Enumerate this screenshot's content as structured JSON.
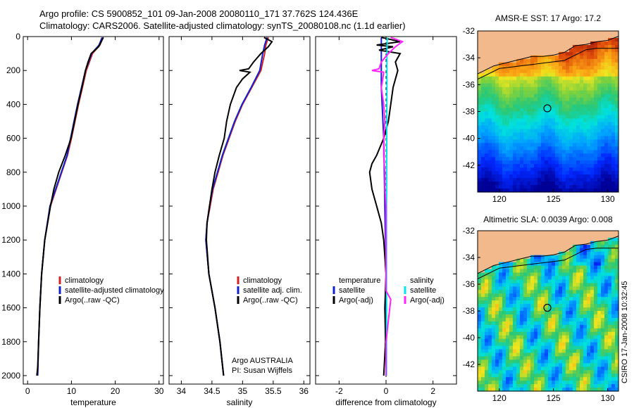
{
  "header": {
    "title_line1": "Argo profile: CS 5900852_101 09-Jan-2008 20080110_171 37.762S 124.436E",
    "title_line2": "Climatology: CARS2006. Satellite-adjusted climatology: synTS_20080108.nc (1.1d earlier)"
  },
  "side_stamp": "CSIRO 17-Jan-2008 10:32:45",
  "colors": {
    "climatology": "#d42020",
    "satellite": "#1020d0",
    "argo": "#000000",
    "salinity_sat": "#00e5ee",
    "salinity_argo": "#ff20ff",
    "land": "#f2b98c",
    "circle": "#000000"
  },
  "chart_data": [
    {
      "type": "line",
      "name": "temperature-panel",
      "xlabel": "temperature",
      "ylabel": "",
      "xlim": [
        -1,
        31
      ],
      "ylim": [
        2050,
        0
      ],
      "xticks": [
        0,
        10,
        20,
        30
      ],
      "yticks": [
        0,
        200,
        400,
        600,
        800,
        1000,
        1200,
        1400,
        1600,
        1800,
        2000
      ],
      "legend": {
        "position": "lower-right",
        "entries": [
          "climatology",
          "satellite-adjusted climatology",
          "Argo(..raw -QC)"
        ]
      },
      "series": [
        {
          "name": "climatology",
          "color": "#d42020",
          "depth": [
            5,
            50,
            100,
            200,
            300,
            400,
            500,
            600,
            700,
            800,
            1000,
            1200,
            1400,
            1600,
            1800,
            2000
          ],
          "values": [
            17.2,
            16.5,
            14.8,
            13.4,
            12.5,
            11.6,
            10.8,
            10.0,
            9.1,
            7.8,
            5.2,
            3.9,
            3.2,
            2.8,
            2.5,
            2.3
          ]
        },
        {
          "name": "satellite-adjusted climatology",
          "color": "#1020d0",
          "depth": [
            5,
            50,
            100,
            200,
            300,
            400,
            500,
            600,
            700,
            800,
            1000,
            1200,
            1400,
            1600,
            1800,
            2000
          ],
          "values": [
            17.0,
            16.3,
            14.6,
            13.2,
            12.3,
            11.4,
            10.6,
            9.8,
            9.0,
            7.7,
            5.1,
            3.9,
            3.2,
            2.8,
            2.5,
            2.3
          ]
        },
        {
          "name": "Argo(..raw -QC)",
          "color": "#000000",
          "depth": [
            5,
            30,
            60,
            100,
            150,
            200,
            300,
            400,
            500,
            600,
            700,
            800,
            900,
            1000,
            1200,
            1400,
            1600,
            1800,
            1950,
            2000
          ],
          "values": [
            17.3,
            16.8,
            16.2,
            14.5,
            13.8,
            13.2,
            12.4,
            11.5,
            10.7,
            9.9,
            8.6,
            7.1,
            6.0,
            5.2,
            3.9,
            3.2,
            2.8,
            2.5,
            2.3,
            2.1
          ]
        }
      ]
    },
    {
      "type": "line",
      "name": "salinity-panel",
      "xlabel": "salinity",
      "ylabel": "",
      "xlim": [
        33.8,
        36.1
      ],
      "ylim": [
        2050,
        0
      ],
      "xticks": [
        34,
        34.5,
        35,
        35.5,
        36
      ],
      "legend": {
        "position": "lower-right",
        "entries": [
          "climatology",
          "satellite adj. clim.",
          "Argo(..raw -QC)"
        ]
      },
      "annotations": [
        "Argo AUSTRALIA",
        "PI: Susan Wijffels"
      ],
      "series": [
        {
          "name": "climatology",
          "color": "#d42020",
          "depth": [
            5,
            50,
            100,
            200,
            300,
            400,
            500,
            600,
            700,
            800,
            900,
            1000,
            1100,
            1200,
            1400,
            1600,
            1800,
            2000
          ],
          "values": [
            35.42,
            35.38,
            35.36,
            35.3,
            35.15,
            35.0,
            34.88,
            34.78,
            34.68,
            34.6,
            34.52,
            34.47,
            34.42,
            34.4,
            34.45,
            34.55,
            34.63,
            34.69
          ]
        },
        {
          "name": "satellite adj. clim.",
          "color": "#1020d0",
          "depth": [
            5,
            50,
            100,
            200,
            300,
            400,
            500,
            600,
            700,
            800,
            900,
            1000,
            1100,
            1200,
            1400,
            1600,
            1800,
            2000
          ],
          "values": [
            35.4,
            35.36,
            35.33,
            35.28,
            35.14,
            34.99,
            34.87,
            34.77,
            34.67,
            34.59,
            34.51,
            34.46,
            34.42,
            34.4,
            34.45,
            34.55,
            34.63,
            34.69
          ]
        },
        {
          "name": "Argo(..raw -QC)",
          "color": "#000000",
          "depth": [
            5,
            30,
            60,
            100,
            150,
            190,
            200,
            210,
            250,
            300,
            400,
            500,
            600,
            700,
            800,
            900,
            1000,
            1100,
            1200,
            1400,
            1600,
            1800,
            2000
          ],
          "values": [
            35.35,
            35.48,
            35.42,
            35.3,
            35.18,
            35.1,
            34.95,
            35.12,
            35.0,
            34.9,
            34.8,
            34.74,
            34.7,
            34.62,
            34.55,
            34.5,
            34.46,
            34.42,
            34.41,
            34.45,
            34.55,
            34.63,
            34.69
          ]
        }
      ]
    },
    {
      "type": "line",
      "name": "difference-panel",
      "xlabel": "difference from climatology",
      "ylabel": "",
      "xlim": [
        -3,
        3
      ],
      "ylim": [
        2050,
        0
      ],
      "xticks": [
        -2,
        0,
        2
      ],
      "legend": {
        "position": "lower",
        "entries": [
          "temperature",
          "satellite",
          "Argo(-adj)",
          "salinity",
          "satellite",
          "Argo(-adj)"
        ]
      },
      "series": [
        {
          "name": "temperature satellite",
          "color": "#1020d0",
          "depth": [
            5,
            100,
            300,
            600,
            1000,
            1400,
            2000
          ],
          "values": [
            -0.2,
            -0.2,
            -0.2,
            -0.1,
            -0.05,
            0.0,
            0.0
          ]
        },
        {
          "name": "temperature Argo(-adj)",
          "color": "#000000",
          "depth": [
            5,
            30,
            50,
            60,
            80,
            100,
            150,
            200,
            300,
            400,
            500,
            600,
            700,
            750,
            800,
            900,
            1000,
            1100,
            1200,
            1400,
            1600,
            1800,
            2000
          ],
          "values": [
            -0.2,
            0.6,
            -0.4,
            0.3,
            -0.3,
            0.6,
            0.4,
            0.5,
            0.3,
            0.2,
            0.1,
            -0.1,
            -0.4,
            -0.6,
            -0.7,
            -0.6,
            -0.4,
            -0.2,
            -0.1,
            0.0,
            -0.05,
            -0.02,
            -0.1
          ]
        },
        {
          "name": "salinity satellite",
          "color": "#00e5ee",
          "depth": [
            5,
            100,
            300,
            600,
            1000,
            1400,
            2000
          ],
          "values": [
            0.05,
            0.04,
            0.04,
            0.03,
            0.02,
            0.02,
            0.02
          ]
        },
        {
          "name": "salinity Argo(-adj)",
          "color": "#ff20ff",
          "depth": [
            5,
            30,
            60,
            100,
            150,
            190,
            200,
            210,
            260,
            300,
            400,
            500,
            600,
            700,
            800,
            900,
            1000,
            1200,
            1500,
            1550,
            1800,
            2000
          ],
          "values": [
            0.2,
            0.7,
            0.4,
            0.1,
            -0.2,
            -0.3,
            -0.6,
            -0.1,
            -0.15,
            -0.2,
            -0.1,
            -0.05,
            -0.1,
            -0.1,
            -0.05,
            -0.05,
            0.0,
            0.0,
            0.0,
            0.2,
            0.0,
            0.0
          ]
        }
      ]
    },
    {
      "type": "heatmap",
      "name": "sst-map",
      "title": "AMSR-E SST: 17 Argo: 17.2",
      "xlim": [
        118,
        131
      ],
      "ylim": [
        -44,
        -32
      ],
      "xticks": [
        120,
        125,
        130
      ],
      "yticks": [
        -32,
        -34,
        -36,
        -38,
        -40,
        -42
      ],
      "float_position": {
        "lon": 124.436,
        "lat": -37.762
      },
      "coast": {
        "lon": [
          118,
          119.5,
          121,
          122,
          123,
          124,
          125,
          126,
          127,
          128,
          129,
          130,
          131
        ],
        "lat": [
          -35.2,
          -34.6,
          -34.3,
          -34.1,
          -33.9,
          -33.9,
          -33.8,
          -33.6,
          -33.1,
          -33.0,
          -32.8,
          -32.7,
          -32.4
        ]
      },
      "front": {
        "lon": [
          118,
          120,
          122,
          124,
          125,
          126,
          127,
          128,
          129,
          130,
          131
        ],
        "lat": [
          -35.6,
          -34.8,
          -34.6,
          -34.4,
          -34.3,
          -34.2,
          -33.8,
          -33.4,
          -33.3,
          -33.3,
          -33.3
        ]
      }
    },
    {
      "type": "heatmap",
      "name": "sla-map",
      "title": "Altimetric SLA: 0.0039 Argo: 0.008",
      "xlim": [
        118,
        131
      ],
      "ylim": [
        -44,
        -32
      ],
      "xticks": [
        120,
        125,
        130
      ],
      "yticks": [
        -32,
        -34,
        -36,
        -38,
        -40,
        -42
      ],
      "float_position": {
        "lon": 124.436,
        "lat": -37.762
      },
      "coast": {
        "lon": [
          118,
          119.5,
          121,
          122,
          123,
          124,
          125,
          126,
          127,
          128,
          129,
          130,
          131
        ],
        "lat": [
          -35.2,
          -34.6,
          -34.3,
          -34.1,
          -33.9,
          -33.9,
          -33.8,
          -33.6,
          -33.1,
          -33.0,
          -32.8,
          -32.7,
          -32.4
        ]
      },
      "front": {
        "lon": [
          118,
          120,
          122,
          124,
          125,
          126,
          127,
          128,
          129,
          130,
          131
        ],
        "lat": [
          -35.6,
          -34.8,
          -34.6,
          -34.4,
          -34.3,
          -34.2,
          -33.8,
          -33.4,
          -33.3,
          -33.3,
          -33.3
        ]
      }
    }
  ]
}
